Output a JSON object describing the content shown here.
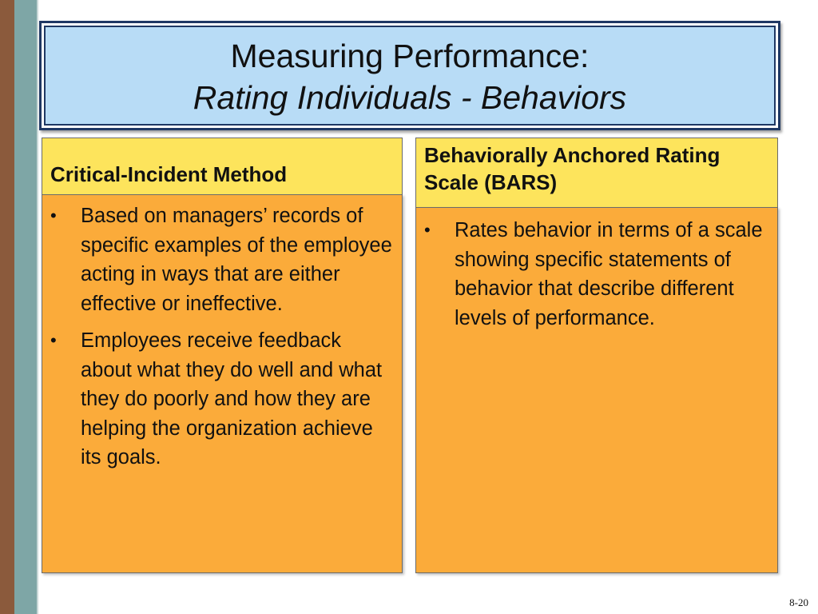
{
  "slide": {
    "title_line1": "Measuring Performance:",
    "title_line2": "Rating Individuals - Behaviors",
    "slide_number": "8-20"
  },
  "columns": [
    {
      "header": "Critical-Incident Method",
      "bullets": [
        "Based on managers’ records of specific examples of the employee acting in ways that are either effective or ineffective.",
        "Employees receive feedback about what they do well and what they do poorly and how they are helping the organization achieve its goals."
      ]
    },
    {
      "header_line1": "Behaviorally Anchored Rating",
      "header_line2": "Scale (BARS)",
      "bullets": [
        "Rates behavior in terms of a scale showing specific statements of behavior that describe different levels of performance."
      ]
    }
  ],
  "colors": {
    "title_fill": "#b8dcf6",
    "title_border": "#1f3864",
    "header_fill": "#fde45c",
    "body_fill": "#fbab3a",
    "stripe_brown": "#8b5a3c",
    "stripe_teal": "#7ea6a6"
  }
}
